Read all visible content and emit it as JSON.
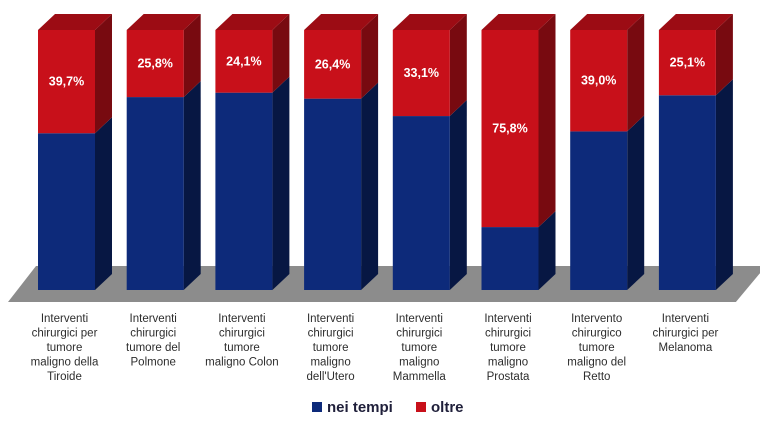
{
  "chart_data": {
    "type": "bar",
    "stacked": true,
    "percent_stacked": true,
    "three_d": true,
    "categories": [
      [
        "Interventi",
        "chirurgici per",
        "tumore",
        "maligno della",
        "Tiroide"
      ],
      [
        "Interventi",
        "chirurgici",
        "tumore del",
        "Polmone"
      ],
      [
        "Interventi",
        "chirurgici",
        "tumore",
        "maligno Colon"
      ],
      [
        "Interventi",
        "chirurgici",
        "tumore",
        "maligno",
        "dell'Utero"
      ],
      [
        "Interventi",
        "chirurgici",
        "tumore",
        "maligno",
        "Mammella"
      ],
      [
        "Interventi",
        "chirurgici",
        "tumore",
        "maligno",
        "Prostata"
      ],
      [
        "Intervento",
        "chirurgico",
        "tumore",
        "maligno del",
        "Retto"
      ],
      [
        "Interventi",
        "chirurgici per",
        "Melanoma"
      ]
    ],
    "series": [
      {
        "name": "nei tempi",
        "color": "#0d2a7a",
        "values": [
          60.3,
          74.2,
          75.9,
          73.6,
          66.9,
          24.2,
          61.0,
          74.9
        ]
      },
      {
        "name": "oltre",
        "color": "#c8101a",
        "values": [
          39.7,
          25.8,
          24.1,
          26.4,
          33.1,
          75.8,
          39.0,
          25.1
        ]
      }
    ],
    "data_labels": [
      "39,7%",
      "25,8%",
      "24,1%",
      "26,4%",
      "33,1%",
      "75,8%",
      "39,0%",
      "25,1%"
    ],
    "ylim": [
      0,
      100
    ],
    "legend": "bottom",
    "grid": false
  },
  "legend": {
    "items": [
      {
        "label": "nei tempi",
        "color": "#0d2a7a"
      },
      {
        "label": "oltre",
        "color": "#c8101a"
      }
    ]
  }
}
